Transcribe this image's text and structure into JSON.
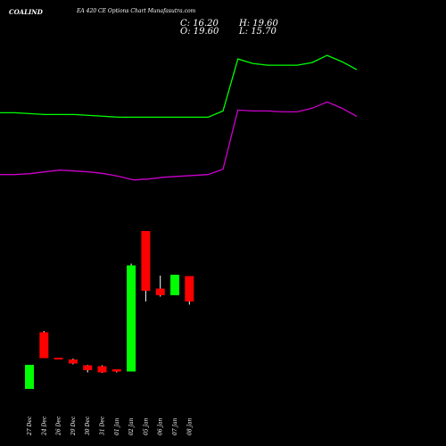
{
  "header": {
    "symbol": "COALIND",
    "subtitle": "EA 420 CE Options Chart Munafasutra.com",
    "close_label": "C: 16.20",
    "open_label": "O: 19.60",
    "high_label": "H: 19.60",
    "low_label": "L: 15.70"
  },
  "chart_data": {
    "type": "candlestick",
    "categories": [
      "27 Dec",
      "24 Dec",
      "26 Dec",
      "29 Dec",
      "30 Dec",
      "31 Dec",
      "01 Jan",
      "02 Jan",
      "05 Jan",
      "06 Jan",
      "07 Jan",
      "08 Jan"
    ],
    "candles": [
      {
        "open": 0.6,
        "high": 6.0,
        "low": 0.6,
        "close": 6.0
      },
      {
        "open": 13.3,
        "high": 13.6,
        "low": 7.5,
        "close": 7.5
      },
      {
        "open": 7.6,
        "high": 7.6,
        "low": 7.2,
        "close": 7.3
      },
      {
        "open": 7.2,
        "high": 7.4,
        "low": 6.1,
        "close": 6.3
      },
      {
        "open": 5.9,
        "high": 6.0,
        "low": 4.3,
        "close": 4.8
      },
      {
        "open": 5.7,
        "high": 5.9,
        "low": 4.2,
        "close": 4.3
      },
      {
        "open": 5.0,
        "high": 5.0,
        "low": 4.3,
        "close": 4.5
      },
      {
        "open": 4.5,
        "high": 28.7,
        "low": 4.5,
        "close": 28.3
      },
      {
        "open": 36.0,
        "high": 36.0,
        "low": 20.2,
        "close": 22.6
      },
      {
        "open": 23.1,
        "high": 26.0,
        "low": 21.3,
        "close": 21.6
      },
      {
        "open": 21.6,
        "high": 26.2,
        "low": 21.6,
        "close": 26.2
      },
      {
        "open": 25.9,
        "high": 25.9,
        "low": 19.5,
        "close": 20.2
      }
    ],
    "x": [
      0,
      1,
      2,
      3,
      4,
      5,
      6,
      7,
      8,
      9,
      10,
      11,
      12,
      13,
      14,
      15,
      16,
      17,
      18,
      19,
      20,
      21,
      22,
      23,
      24
    ],
    "series": [
      {
        "color": "#00ff00",
        "values": [
          342,
          342,
          341,
          340,
          340,
          340,
          339,
          338,
          337,
          337,
          337,
          337,
          337,
          337,
          337,
          344,
          402,
          397,
          395,
          395,
          395,
          398,
          406,
          399,
          390
        ]
      },
      {
        "color": "#cc00cc",
        "values": [
          273,
          273,
          274,
          276,
          278,
          277,
          276,
          274,
          271,
          267,
          268,
          270,
          271,
          272,
          273,
          279,
          345,
          344,
          344,
          343,
          343,
          347,
          354,
          347,
          338
        ]
      }
    ],
    "colors": {
      "up": "#00ff00",
      "down": "#ff0000",
      "wick": "#ffffff",
      "background": "#000000",
      "text": "#ffffff"
    }
  }
}
